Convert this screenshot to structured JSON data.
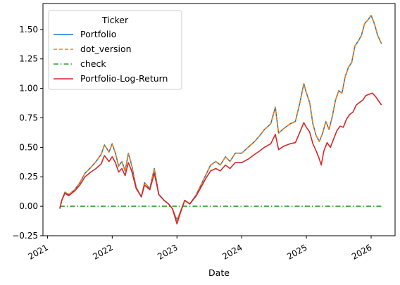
{
  "chart_data": {
    "type": "line",
    "xlabel": "Date",
    "ylabel": "",
    "legend": {
      "title": "Ticker",
      "placement": "top-left"
    },
    "x_ticks": [
      "2021",
      "2022",
      "2023",
      "2024",
      "2025",
      "2026"
    ],
    "y_ticks": [
      "−0.25",
      "0.00",
      "0.25",
      "0.50",
      "0.75",
      "1.00",
      "1.25",
      "1.50"
    ],
    "xlim": [
      2020.93,
      2026.37
    ],
    "ylim": [
      -0.25,
      1.72
    ],
    "grid": false,
    "series": [
      {
        "name": "Portfolio",
        "color": "#1f77b4",
        "style": "solid",
        "points": [
          [
            2021.19,
            -0.02
          ],
          [
            2021.22,
            0.05
          ],
          [
            2021.27,
            0.12
          ],
          [
            2021.33,
            0.1
          ],
          [
            2021.42,
            0.14
          ],
          [
            2021.5,
            0.2
          ],
          [
            2021.58,
            0.28
          ],
          [
            2021.67,
            0.33
          ],
          [
            2021.75,
            0.38
          ],
          [
            2021.83,
            0.44
          ],
          [
            2021.88,
            0.52
          ],
          [
            2021.95,
            0.46
          ],
          [
            2022.0,
            0.53
          ],
          [
            2022.05,
            0.45
          ],
          [
            2022.1,
            0.34
          ],
          [
            2022.15,
            0.38
          ],
          [
            2022.2,
            0.3
          ],
          [
            2022.25,
            0.45
          ],
          [
            2022.3,
            0.35
          ],
          [
            2022.37,
            0.16
          ],
          [
            2022.45,
            0.08
          ],
          [
            2022.5,
            0.2
          ],
          [
            2022.58,
            0.15
          ],
          [
            2022.65,
            0.32
          ],
          [
            2022.72,
            0.1
          ],
          [
            2022.8,
            0.05
          ],
          [
            2022.87,
            0.02
          ],
          [
            2022.93,
            -0.02
          ],
          [
            2023.0,
            -0.12
          ],
          [
            2023.05,
            -0.05
          ],
          [
            2023.12,
            0.05
          ],
          [
            2023.2,
            0.02
          ],
          [
            2023.3,
            0.1
          ],
          [
            2023.37,
            0.18
          ],
          [
            2023.45,
            0.27
          ],
          [
            2023.52,
            0.35
          ],
          [
            2023.6,
            0.38
          ],
          [
            2023.67,
            0.35
          ],
          [
            2023.75,
            0.42
          ],
          [
            2023.82,
            0.38
          ],
          [
            2023.9,
            0.45
          ],
          [
            2024.0,
            0.45
          ],
          [
            2024.1,
            0.5
          ],
          [
            2024.2,
            0.55
          ],
          [
            2024.28,
            0.6
          ],
          [
            2024.35,
            0.65
          ],
          [
            2024.45,
            0.7
          ],
          [
            2024.52,
            0.84
          ],
          [
            2024.57,
            0.62
          ],
          [
            2024.65,
            0.66
          ],
          [
            2024.75,
            0.7
          ],
          [
            2024.83,
            0.72
          ],
          [
            2024.9,
            0.88
          ],
          [
            2024.96,
            1.04
          ],
          [
            2025.0,
            0.96
          ],
          [
            2025.05,
            0.88
          ],
          [
            2025.1,
            0.7
          ],
          [
            2025.15,
            0.6
          ],
          [
            2025.2,
            0.55
          ],
          [
            2025.25,
            0.62
          ],
          [
            2025.3,
            0.72
          ],
          [
            2025.35,
            0.65
          ],
          [
            2025.4,
            0.76
          ],
          [
            2025.45,
            0.9
          ],
          [
            2025.5,
            0.98
          ],
          [
            2025.55,
            0.96
          ],
          [
            2025.6,
            1.1
          ],
          [
            2025.65,
            1.18
          ],
          [
            2025.7,
            1.22
          ],
          [
            2025.75,
            1.36
          ],
          [
            2025.8,
            1.4
          ],
          [
            2025.85,
            1.45
          ],
          [
            2025.9,
            1.55
          ],
          [
            2025.95,
            1.58
          ],
          [
            2026.0,
            1.62
          ],
          [
            2026.05,
            1.55
          ],
          [
            2026.1,
            1.45
          ],
          [
            2026.16,
            1.38
          ]
        ]
      },
      {
        "name": "dot_version",
        "color": "#ff7f0e",
        "style": "dashed",
        "points": [
          [
            2021.19,
            -0.02
          ],
          [
            2021.22,
            0.05
          ],
          [
            2021.27,
            0.12
          ],
          [
            2021.33,
            0.1
          ],
          [
            2021.42,
            0.14
          ],
          [
            2021.5,
            0.2
          ],
          [
            2021.58,
            0.28
          ],
          [
            2021.67,
            0.33
          ],
          [
            2021.75,
            0.38
          ],
          [
            2021.83,
            0.44
          ],
          [
            2021.88,
            0.52
          ],
          [
            2021.95,
            0.46
          ],
          [
            2022.0,
            0.53
          ],
          [
            2022.05,
            0.45
          ],
          [
            2022.1,
            0.34
          ],
          [
            2022.15,
            0.38
          ],
          [
            2022.2,
            0.3
          ],
          [
            2022.25,
            0.45
          ],
          [
            2022.3,
            0.35
          ],
          [
            2022.37,
            0.16
          ],
          [
            2022.45,
            0.08
          ],
          [
            2022.5,
            0.2
          ],
          [
            2022.58,
            0.15
          ],
          [
            2022.65,
            0.32
          ],
          [
            2022.72,
            0.1
          ],
          [
            2022.8,
            0.05
          ],
          [
            2022.87,
            0.02
          ],
          [
            2022.93,
            -0.02
          ],
          [
            2023.0,
            -0.12
          ],
          [
            2023.05,
            -0.05
          ],
          [
            2023.12,
            0.05
          ],
          [
            2023.2,
            0.02
          ],
          [
            2023.3,
            0.1
          ],
          [
            2023.37,
            0.18
          ],
          [
            2023.45,
            0.27
          ],
          [
            2023.52,
            0.35
          ],
          [
            2023.6,
            0.38
          ],
          [
            2023.67,
            0.35
          ],
          [
            2023.75,
            0.42
          ],
          [
            2023.82,
            0.38
          ],
          [
            2023.9,
            0.45
          ],
          [
            2024.0,
            0.45
          ],
          [
            2024.1,
            0.5
          ],
          [
            2024.2,
            0.55
          ],
          [
            2024.28,
            0.6
          ],
          [
            2024.35,
            0.65
          ],
          [
            2024.45,
            0.7
          ],
          [
            2024.52,
            0.84
          ],
          [
            2024.57,
            0.62
          ],
          [
            2024.65,
            0.66
          ],
          [
            2024.75,
            0.7
          ],
          [
            2024.83,
            0.72
          ],
          [
            2024.9,
            0.88
          ],
          [
            2024.96,
            1.04
          ],
          [
            2025.0,
            0.96
          ],
          [
            2025.05,
            0.88
          ],
          [
            2025.1,
            0.7
          ],
          [
            2025.15,
            0.6
          ],
          [
            2025.2,
            0.55
          ],
          [
            2025.25,
            0.62
          ],
          [
            2025.3,
            0.72
          ],
          [
            2025.35,
            0.65
          ],
          [
            2025.4,
            0.76
          ],
          [
            2025.45,
            0.9
          ],
          [
            2025.5,
            0.98
          ],
          [
            2025.55,
            0.96
          ],
          [
            2025.6,
            1.1
          ],
          [
            2025.65,
            1.18
          ],
          [
            2025.7,
            1.22
          ],
          [
            2025.75,
            1.36
          ],
          [
            2025.8,
            1.4
          ],
          [
            2025.85,
            1.45
          ],
          [
            2025.9,
            1.55
          ],
          [
            2025.95,
            1.58
          ],
          [
            2026.0,
            1.62
          ],
          [
            2026.05,
            1.55
          ],
          [
            2026.1,
            1.45
          ],
          [
            2026.16,
            1.38
          ]
        ]
      },
      {
        "name": "check",
        "color": "#2ca02c",
        "style": "dashdot",
        "points": [
          [
            2021.19,
            0.0
          ],
          [
            2026.16,
            0.0
          ]
        ]
      },
      {
        "name": "Portfolio-Log-Return",
        "color": "#d62728",
        "style": "solid",
        "points": [
          [
            2021.19,
            -0.02
          ],
          [
            2021.22,
            0.05
          ],
          [
            2021.27,
            0.11
          ],
          [
            2021.33,
            0.09
          ],
          [
            2021.42,
            0.13
          ],
          [
            2021.5,
            0.18
          ],
          [
            2021.58,
            0.25
          ],
          [
            2021.67,
            0.29
          ],
          [
            2021.75,
            0.32
          ],
          [
            2021.83,
            0.36
          ],
          [
            2021.88,
            0.43
          ],
          [
            2021.95,
            0.38
          ],
          [
            2022.0,
            0.42
          ],
          [
            2022.05,
            0.37
          ],
          [
            2022.1,
            0.29
          ],
          [
            2022.15,
            0.32
          ],
          [
            2022.2,
            0.26
          ],
          [
            2022.25,
            0.37
          ],
          [
            2022.3,
            0.3
          ],
          [
            2022.37,
            0.15
          ],
          [
            2022.45,
            0.08
          ],
          [
            2022.5,
            0.18
          ],
          [
            2022.58,
            0.14
          ],
          [
            2022.65,
            0.28
          ],
          [
            2022.72,
            0.1
          ],
          [
            2022.8,
            0.05
          ],
          [
            2022.87,
            0.02
          ],
          [
            2022.93,
            -0.02
          ],
          [
            2023.0,
            -0.15
          ],
          [
            2023.05,
            -0.06
          ],
          [
            2023.12,
            0.05
          ],
          [
            2023.2,
            0.02
          ],
          [
            2023.3,
            0.09
          ],
          [
            2023.37,
            0.16
          ],
          [
            2023.45,
            0.24
          ],
          [
            2023.52,
            0.3
          ],
          [
            2023.6,
            0.32
          ],
          [
            2023.67,
            0.3
          ],
          [
            2023.75,
            0.35
          ],
          [
            2023.82,
            0.32
          ],
          [
            2023.9,
            0.37
          ],
          [
            2024.0,
            0.37
          ],
          [
            2024.1,
            0.4
          ],
          [
            2024.2,
            0.44
          ],
          [
            2024.28,
            0.47
          ],
          [
            2024.35,
            0.5
          ],
          [
            2024.45,
            0.53
          ],
          [
            2024.52,
            0.61
          ],
          [
            2024.57,
            0.48
          ],
          [
            2024.65,
            0.51
          ],
          [
            2024.75,
            0.53
          ],
          [
            2024.83,
            0.54
          ],
          [
            2024.9,
            0.63
          ],
          [
            2024.96,
            0.71
          ],
          [
            2025.0,
            0.67
          ],
          [
            2025.05,
            0.63
          ],
          [
            2025.1,
            0.53
          ],
          [
            2025.15,
            0.47
          ],
          [
            2025.2,
            0.4
          ],
          [
            2025.23,
            0.35
          ],
          [
            2025.27,
            0.47
          ],
          [
            2025.32,
            0.54
          ],
          [
            2025.37,
            0.5
          ],
          [
            2025.42,
            0.57
          ],
          [
            2025.47,
            0.64
          ],
          [
            2025.52,
            0.68
          ],
          [
            2025.57,
            0.67
          ],
          [
            2025.62,
            0.74
          ],
          [
            2025.67,
            0.78
          ],
          [
            2025.72,
            0.8
          ],
          [
            2025.77,
            0.86
          ],
          [
            2025.82,
            0.88
          ],
          [
            2025.87,
            0.9
          ],
          [
            2025.92,
            0.94
          ],
          [
            2025.97,
            0.95
          ],
          [
            2026.02,
            0.96
          ],
          [
            2026.07,
            0.93
          ],
          [
            2026.12,
            0.89
          ],
          [
            2026.16,
            0.86
          ]
        ]
      }
    ]
  }
}
